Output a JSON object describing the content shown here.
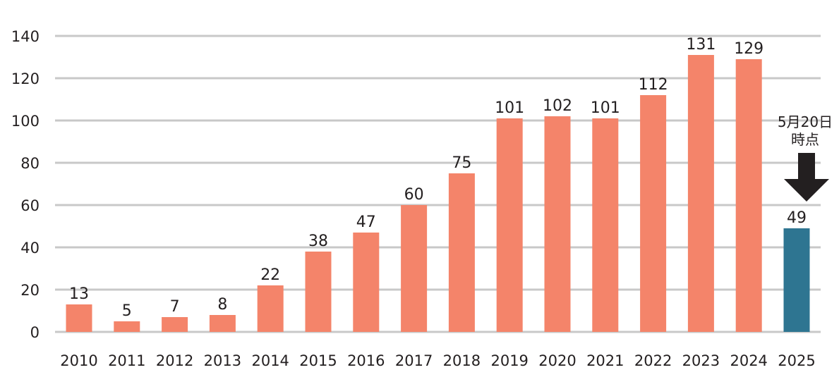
{
  "chart_data": {
    "type": "bar",
    "title": "",
    "xlabel": "",
    "ylabel": "",
    "ylim": [
      0,
      140
    ],
    "yticks": [
      0,
      20,
      40,
      60,
      80,
      100,
      120,
      140
    ],
    "grid": true,
    "categories": [
      "2010",
      "2011",
      "2012",
      "2013",
      "2014",
      "2015",
      "2016",
      "2017",
      "2018",
      "2019",
      "2020",
      "2021",
      "2022",
      "2023",
      "2024",
      "2025"
    ],
    "values": [
      13,
      5,
      7,
      8,
      22,
      38,
      47,
      60,
      75,
      101,
      102,
      101,
      112,
      131,
      129,
      49
    ],
    "colors": {
      "default_bar": "#f4846a",
      "highlight_bar": "#2e7591",
      "grid": "#c8c8c8",
      "axis": "#c8c8c8",
      "arrow": "#231f20"
    },
    "highlight_category": "2025",
    "annotation": {
      "category": "2025",
      "lines": [
        "5月20日",
        "時点"
      ],
      "arrow": "down-arrow"
    }
  }
}
